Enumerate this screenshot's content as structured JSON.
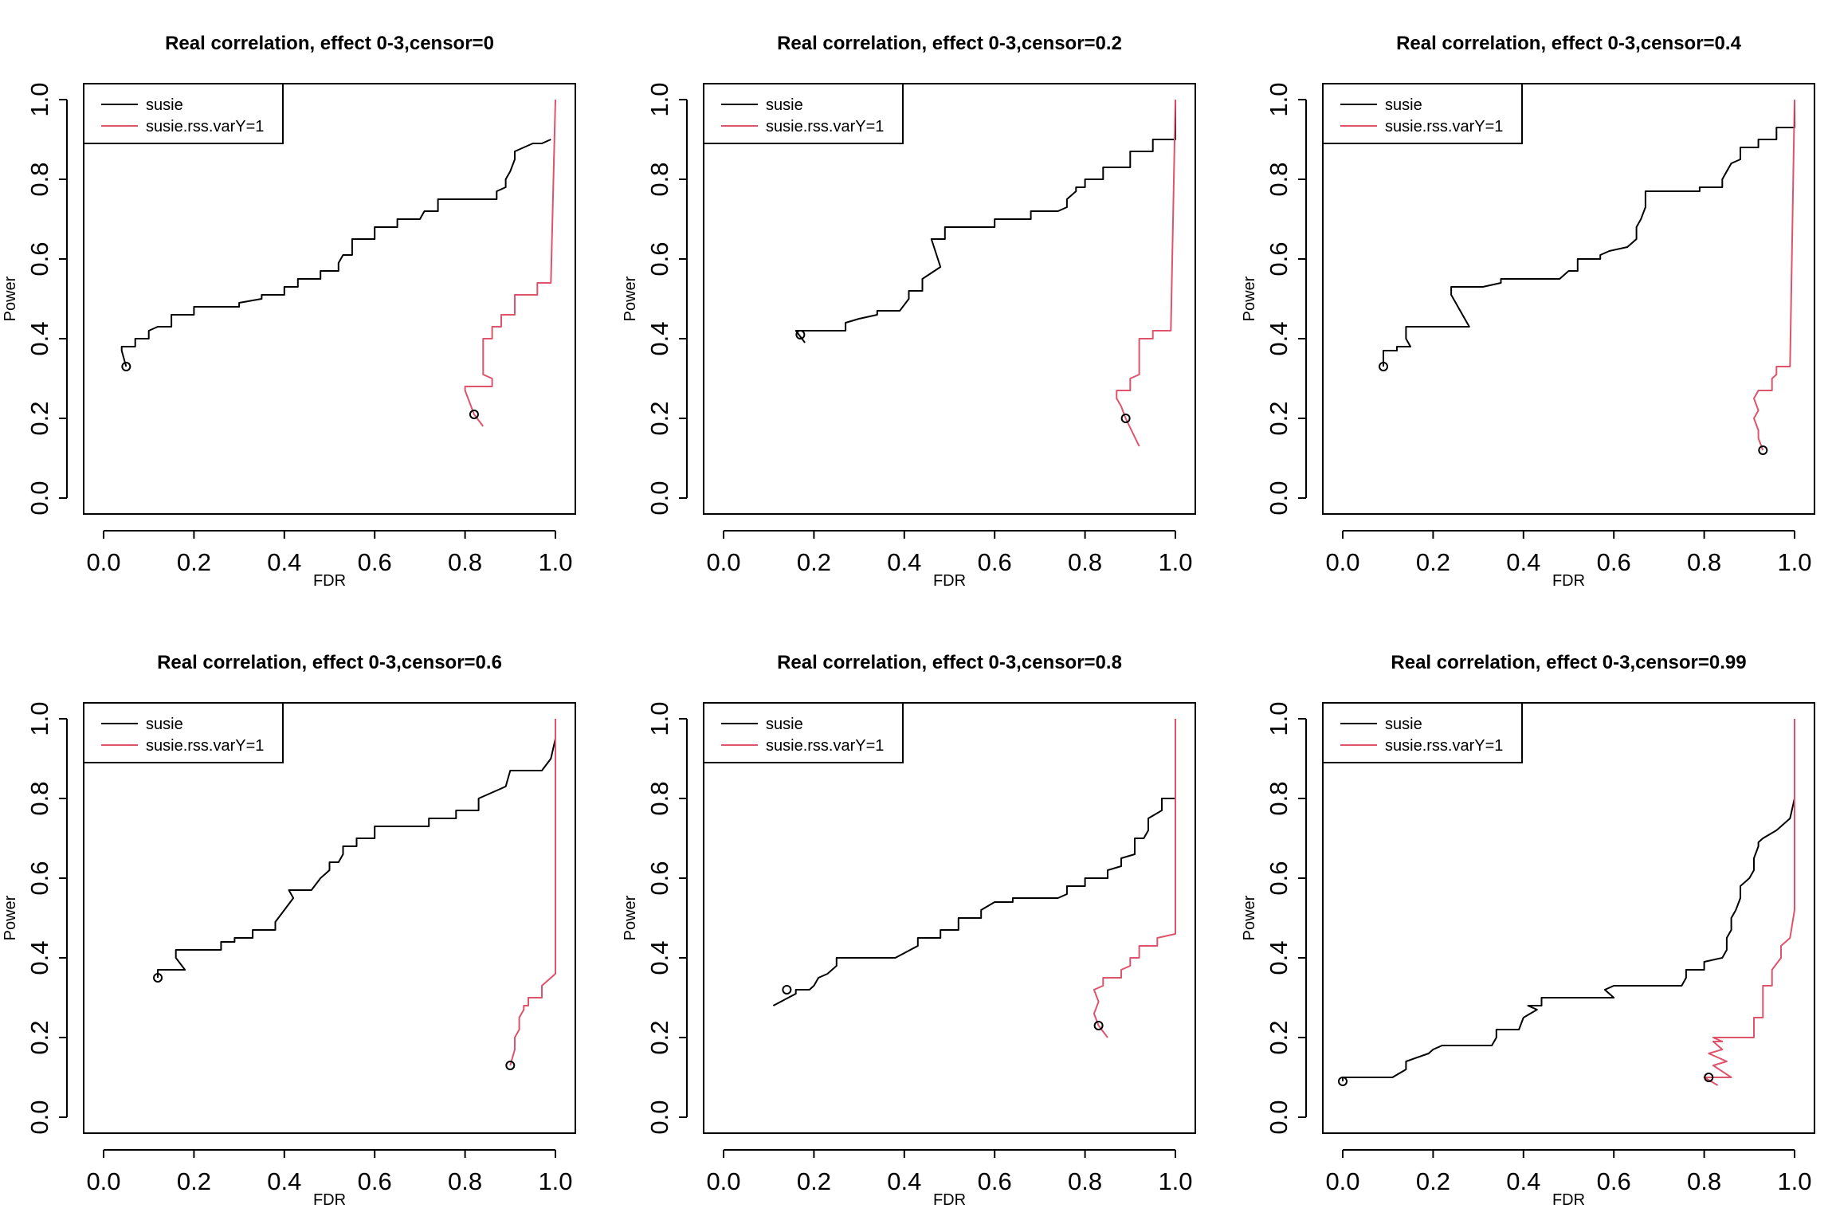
{
  "chart_data": [
    {
      "type": "line",
      "title": "Real correlation, effect 0-3,censor=0",
      "xlabel": "FDR",
      "ylabel": "Power",
      "xlim": [
        0,
        1
      ],
      "ylim": [
        0,
        1
      ],
      "xticks": [
        "0.0",
        "0.2",
        "0.4",
        "0.6",
        "0.8",
        "1.0"
      ],
      "yticks": [
        "0.0",
        "0.2",
        "0.4",
        "0.6",
        "0.8",
        "1.0"
      ],
      "legend_position": "top-left",
      "series": [
        {
          "name": "susie",
          "color": "#000000",
          "x": [
            0.05,
            0.04,
            0.04,
            0.07,
            0.07,
            0.1,
            0.1,
            0.12,
            0.15,
            0.15,
            0.2,
            0.2,
            0.3,
            0.3,
            0.35,
            0.35,
            0.4,
            0.4,
            0.43,
            0.43,
            0.48,
            0.48,
            0.52,
            0.52,
            0.53,
            0.55,
            0.55,
            0.6,
            0.6,
            0.65,
            0.65,
            0.7,
            0.71,
            0.74,
            0.74,
            0.8,
            0.87,
            0.87,
            0.89,
            0.89,
            0.9,
            0.91,
            0.91,
            0.95,
            0.97,
            0.99,
            0.99
          ],
          "y": [
            0.33,
            0.37,
            0.38,
            0.38,
            0.4,
            0.4,
            0.42,
            0.43,
            0.43,
            0.46,
            0.46,
            0.48,
            0.48,
            0.49,
            0.5,
            0.51,
            0.51,
            0.53,
            0.53,
            0.55,
            0.55,
            0.57,
            0.57,
            0.59,
            0.61,
            0.61,
            0.65,
            0.65,
            0.68,
            0.68,
            0.7,
            0.7,
            0.72,
            0.72,
            0.75,
            0.75,
            0.75,
            0.77,
            0.78,
            0.8,
            0.82,
            0.85,
            0.87,
            0.89,
            0.89,
            0.9,
            0.9
          ]
        },
        {
          "name": "susie.rss.varY=1",
          "color": "#DF536B",
          "x": [
            0.84,
            0.82,
            0.81,
            0.8,
            0.8,
            0.86,
            0.86,
            0.84,
            0.84,
            0.86,
            0.86,
            0.88,
            0.88,
            0.91,
            0.91,
            0.96,
            0.96,
            0.99,
            0.99,
            1.0
          ],
          "y": [
            0.18,
            0.21,
            0.24,
            0.27,
            0.28,
            0.28,
            0.3,
            0.31,
            0.4,
            0.4,
            0.43,
            0.43,
            0.46,
            0.46,
            0.51,
            0.51,
            0.54,
            0.54,
            0.54,
            1.0
          ]
        }
      ],
      "markers": [
        {
          "series": "susie",
          "x": 0.05,
          "y": 0.33
        },
        {
          "series": "susie.rss.varY=1",
          "x": 0.82,
          "y": 0.21
        }
      ]
    },
    {
      "type": "line",
      "title": "Real correlation, effect 0-3,censor=0.2",
      "xlabel": "FDR",
      "ylabel": "Power",
      "xlim": [
        0,
        1
      ],
      "ylim": [
        0,
        1
      ],
      "xticks": [
        "0.0",
        "0.2",
        "0.4",
        "0.6",
        "0.8",
        "1.0"
      ],
      "yticks": [
        "0.0",
        "0.2",
        "0.4",
        "0.6",
        "0.8",
        "1.0"
      ],
      "legend_position": "top-left",
      "series": [
        {
          "name": "susie",
          "color": "#000000",
          "x": [
            0.18,
            0.16,
            0.16,
            0.27,
            0.27,
            0.3,
            0.34,
            0.34,
            0.39,
            0.41,
            0.41,
            0.44,
            0.44,
            0.48,
            0.46,
            0.49,
            0.49,
            0.6,
            0.6,
            0.68,
            0.68,
            0.74,
            0.76,
            0.76,
            0.78,
            0.78,
            0.8,
            0.8,
            0.84,
            0.84,
            0.87,
            0.9,
            0.9,
            0.95,
            0.95,
            1.0,
            1.0
          ],
          "y": [
            0.39,
            0.42,
            0.42,
            0.42,
            0.44,
            0.45,
            0.46,
            0.47,
            0.47,
            0.5,
            0.52,
            0.52,
            0.55,
            0.58,
            0.65,
            0.65,
            0.68,
            0.68,
            0.7,
            0.7,
            0.72,
            0.72,
            0.73,
            0.75,
            0.77,
            0.78,
            0.78,
            0.8,
            0.8,
            0.83,
            0.83,
            0.83,
            0.87,
            0.87,
            0.9,
            0.9,
            1.0
          ]
        },
        {
          "name": "susie.rss.varY=1",
          "color": "#DF536B",
          "x": [
            0.92,
            0.89,
            0.88,
            0.87,
            0.87,
            0.9,
            0.9,
            0.92,
            0.92,
            0.95,
            0.95,
            0.99,
            0.99,
            1.0
          ],
          "y": [
            0.13,
            0.2,
            0.23,
            0.25,
            0.27,
            0.27,
            0.3,
            0.31,
            0.4,
            0.4,
            0.42,
            0.42,
            0.42,
            1.0
          ]
        }
      ],
      "markers": [
        {
          "series": "susie",
          "x": 0.17,
          "y": 0.41
        },
        {
          "series": "susie.rss.varY=1",
          "x": 0.89,
          "y": 0.2
        }
      ]
    },
    {
      "type": "line",
      "title": "Real correlation, effect 0-3,censor=0.4",
      "xlabel": "FDR",
      "ylabel": "Power",
      "xlim": [
        0,
        1
      ],
      "ylim": [
        0,
        1
      ],
      "xticks": [
        "0.0",
        "0.2",
        "0.4",
        "0.6",
        "0.8",
        "1.0"
      ],
      "yticks": [
        "0.0",
        "0.2",
        "0.4",
        "0.6",
        "0.8",
        "1.0"
      ],
      "legend_position": "top-left",
      "series": [
        {
          "name": "susie",
          "color": "#000000",
          "x": [
            0.09,
            0.09,
            0.12,
            0.12,
            0.15,
            0.14,
            0.14,
            0.28,
            0.24,
            0.24,
            0.31,
            0.35,
            0.35,
            0.48,
            0.5,
            0.52,
            0.52,
            0.57,
            0.57,
            0.59,
            0.63,
            0.65,
            0.65,
            0.66,
            0.67,
            0.67,
            0.79,
            0.79,
            0.84,
            0.84,
            0.85,
            0.86,
            0.88,
            0.88,
            0.92,
            0.92,
            0.96,
            0.96,
            1.0,
            1.0
          ],
          "y": [
            0.33,
            0.37,
            0.37,
            0.38,
            0.38,
            0.4,
            0.43,
            0.43,
            0.51,
            0.53,
            0.53,
            0.54,
            0.55,
            0.55,
            0.57,
            0.57,
            0.6,
            0.6,
            0.61,
            0.62,
            0.63,
            0.65,
            0.68,
            0.7,
            0.73,
            0.77,
            0.77,
            0.78,
            0.78,
            0.8,
            0.82,
            0.84,
            0.85,
            0.88,
            0.88,
            0.9,
            0.9,
            0.93,
            0.93,
            1.0
          ]
        },
        {
          "name": "susie.rss.varY=1",
          "color": "#DF536B",
          "x": [
            0.93,
            0.92,
            0.92,
            0.91,
            0.92,
            0.91,
            0.92,
            0.95,
            0.95,
            0.96,
            0.96,
            0.99,
            0.99,
            1.0
          ],
          "y": [
            0.12,
            0.15,
            0.17,
            0.2,
            0.22,
            0.25,
            0.27,
            0.27,
            0.3,
            0.31,
            0.33,
            0.33,
            0.33,
            1.0
          ]
        }
      ],
      "markers": [
        {
          "series": "susie",
          "x": 0.09,
          "y": 0.33
        },
        {
          "series": "susie.rss.varY=1",
          "x": 0.93,
          "y": 0.12
        }
      ]
    },
    {
      "type": "line",
      "title": "Real correlation, effect 0-3,censor=0.6",
      "xlabel": "FDR",
      "ylabel": "Power",
      "xlim": [
        0,
        1
      ],
      "ylim": [
        0,
        1
      ],
      "xticks": [
        "0.0",
        "0.2",
        "0.4",
        "0.6",
        "0.8",
        "1.0"
      ],
      "yticks": [
        "0.0",
        "0.2",
        "0.4",
        "0.6",
        "0.8",
        "1.0"
      ],
      "legend_position": "top-left",
      "series": [
        {
          "name": "susie",
          "color": "#000000",
          "x": [
            0.12,
            0.12,
            0.18,
            0.16,
            0.16,
            0.26,
            0.26,
            0.29,
            0.29,
            0.33,
            0.33,
            0.38,
            0.38,
            0.4,
            0.42,
            0.41,
            0.46,
            0.48,
            0.5,
            0.5,
            0.52,
            0.53,
            0.53,
            0.56,
            0.56,
            0.6,
            0.6,
            0.72,
            0.72,
            0.78,
            0.78,
            0.83,
            0.83,
            0.89,
            0.9,
            0.97,
            0.99,
            1.0,
            1.0
          ],
          "y": [
            0.35,
            0.37,
            0.37,
            0.4,
            0.42,
            0.42,
            0.44,
            0.44,
            0.45,
            0.45,
            0.47,
            0.47,
            0.49,
            0.52,
            0.55,
            0.57,
            0.57,
            0.6,
            0.62,
            0.64,
            0.64,
            0.66,
            0.68,
            0.68,
            0.7,
            0.7,
            0.73,
            0.73,
            0.75,
            0.75,
            0.77,
            0.77,
            0.8,
            0.83,
            0.87,
            0.87,
            0.9,
            0.95,
            1.0
          ]
        },
        {
          "name": "susie.rss.varY=1",
          "color": "#DF536B",
          "x": [
            0.9,
            0.91,
            0.91,
            0.92,
            0.92,
            0.93,
            0.93,
            0.94,
            0.94,
            0.97,
            0.97,
            0.99,
            1.0,
            1.0
          ],
          "y": [
            0.13,
            0.17,
            0.2,
            0.22,
            0.25,
            0.27,
            0.28,
            0.28,
            0.3,
            0.3,
            0.33,
            0.35,
            0.36,
            1.0
          ]
        }
      ],
      "markers": [
        {
          "series": "susie",
          "x": 0.12,
          "y": 0.35
        },
        {
          "series": "susie.rss.varY=1",
          "x": 0.9,
          "y": 0.13
        }
      ]
    },
    {
      "type": "line",
      "title": "Real correlation, effect 0-3,censor=0.8",
      "xlabel": "FDR",
      "ylabel": "Power",
      "xlim": [
        0,
        1
      ],
      "ylim": [
        0,
        1
      ],
      "xticks": [
        "0.0",
        "0.2",
        "0.4",
        "0.6",
        "0.8",
        "1.0"
      ],
      "yticks": [
        "0.0",
        "0.2",
        "0.4",
        "0.6",
        "0.8",
        "1.0"
      ],
      "legend_position": "top-left",
      "series": [
        {
          "name": "susie",
          "color": "#000000",
          "x": [
            0.11,
            0.16,
            0.16,
            0.19,
            0.2,
            0.21,
            0.23,
            0.25,
            0.25,
            0.38,
            0.43,
            0.43,
            0.48,
            0.48,
            0.52,
            0.52,
            0.57,
            0.57,
            0.6,
            0.64,
            0.64,
            0.74,
            0.76,
            0.76,
            0.8,
            0.8,
            0.85,
            0.85,
            0.88,
            0.88,
            0.91,
            0.91,
            0.93,
            0.94,
            0.94,
            0.97,
            0.97,
            1.0,
            1.0
          ],
          "y": [
            0.28,
            0.31,
            0.32,
            0.32,
            0.33,
            0.35,
            0.36,
            0.38,
            0.4,
            0.4,
            0.43,
            0.45,
            0.45,
            0.47,
            0.47,
            0.5,
            0.5,
            0.52,
            0.54,
            0.54,
            0.55,
            0.55,
            0.56,
            0.58,
            0.58,
            0.6,
            0.6,
            0.62,
            0.63,
            0.65,
            0.66,
            0.7,
            0.7,
            0.72,
            0.75,
            0.77,
            0.8,
            0.8,
            0.83
          ]
        },
        {
          "name": "susie.rss.varY=1",
          "color": "#DF536B",
          "x": [
            0.85,
            0.83,
            0.82,
            0.83,
            0.82,
            0.84,
            0.84,
            0.88,
            0.88,
            0.9,
            0.9,
            0.92,
            0.92,
            0.96,
            0.96,
            1.0,
            1.0
          ],
          "y": [
            0.2,
            0.23,
            0.26,
            0.29,
            0.32,
            0.33,
            0.35,
            0.35,
            0.37,
            0.38,
            0.4,
            0.4,
            0.43,
            0.43,
            0.45,
            0.46,
            1.0
          ]
        }
      ],
      "markers": [
        {
          "series": "susie",
          "x": 0.14,
          "y": 0.32
        },
        {
          "series": "susie.rss.varY=1",
          "x": 0.83,
          "y": 0.23
        }
      ]
    },
    {
      "type": "line",
      "title": "Real correlation, effect 0-3,censor=0.99",
      "xlabel": "FDR",
      "ylabel": "Power",
      "xlim": [
        0,
        1
      ],
      "ylim": [
        0,
        1
      ],
      "xticks": [
        "0.0",
        "0.2",
        "0.4",
        "0.6",
        "0.8",
        "1.0"
      ],
      "yticks": [
        "0.0",
        "0.2",
        "0.4",
        "0.6",
        "0.8",
        "1.0"
      ],
      "legend_position": "top-left",
      "series": [
        {
          "name": "susie",
          "color": "#000000",
          "x": [
            0.0,
            0.0,
            0.11,
            0.14,
            0.14,
            0.19,
            0.2,
            0.22,
            0.33,
            0.34,
            0.34,
            0.39,
            0.4,
            0.43,
            0.41,
            0.44,
            0.44,
            0.6,
            0.58,
            0.6,
            0.75,
            0.76,
            0.76,
            0.8,
            0.8,
            0.84,
            0.85,
            0.85,
            0.86,
            0.86,
            0.87,
            0.88,
            0.88,
            0.9,
            0.91,
            0.91,
            0.92,
            0.92,
            0.93,
            0.93,
            0.96,
            0.97,
            0.99,
            1.0,
            1.0
          ],
          "y": [
            0.09,
            0.1,
            0.1,
            0.12,
            0.14,
            0.16,
            0.17,
            0.18,
            0.18,
            0.2,
            0.22,
            0.22,
            0.25,
            0.27,
            0.28,
            0.28,
            0.3,
            0.3,
            0.32,
            0.33,
            0.33,
            0.35,
            0.37,
            0.37,
            0.39,
            0.4,
            0.42,
            0.45,
            0.47,
            0.5,
            0.52,
            0.55,
            0.58,
            0.6,
            0.62,
            0.65,
            0.68,
            0.69,
            0.7,
            0.7,
            0.72,
            0.73,
            0.75,
            0.8,
            1.0
          ]
        },
        {
          "name": "susie.rss.varY=1",
          "color": "#DF536B",
          "x": [
            0.83,
            0.8,
            0.86,
            0.82,
            0.85,
            0.81,
            0.84,
            0.82,
            0.84,
            0.82,
            0.82,
            0.91,
            0.91,
            0.93,
            0.93,
            0.95,
            0.95,
            0.97,
            0.97,
            0.98,
            0.99,
            1.0,
            1.0
          ],
          "y": [
            0.08,
            0.1,
            0.1,
            0.13,
            0.14,
            0.16,
            0.17,
            0.19,
            0.19,
            0.2,
            0.2,
            0.2,
            0.25,
            0.25,
            0.33,
            0.33,
            0.37,
            0.4,
            0.43,
            0.44,
            0.45,
            0.52,
            1.0
          ]
        }
      ],
      "markers": [
        {
          "series": "susie",
          "x": 0.0,
          "y": 0.09
        },
        {
          "series": "susie.rss.varY=1",
          "x": 0.81,
          "y": 0.1
        }
      ]
    }
  ]
}
